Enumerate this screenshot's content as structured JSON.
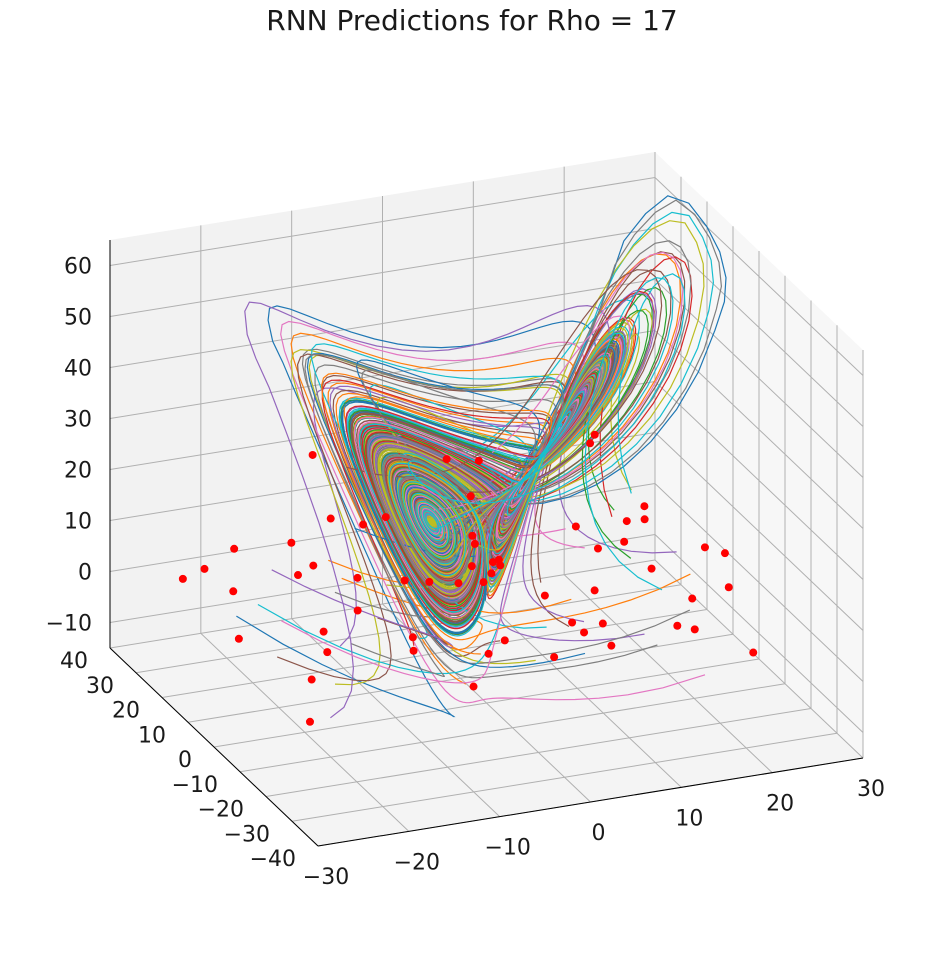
{
  "chart_data": {
    "type": "line",
    "projection": "3d",
    "title": "RNN Predictions for Rho = 17",
    "xlabel": "",
    "ylabel": "",
    "zlabel": "",
    "xlim": [
      -30,
      30
    ],
    "ylim": [
      -40,
      40
    ],
    "zlim": [
      -15,
      65
    ],
    "x_ticks": [
      "−30",
      "−20",
      "−10",
      "0",
      "10",
      "20",
      "30"
    ],
    "y_ticks": [
      "−40",
      "−30",
      "−20",
      "−10",
      "0",
      "10",
      "20",
      "30",
      "40"
    ],
    "z_ticks": [
      "−10",
      "0",
      "10",
      "20",
      "30",
      "40",
      "50",
      "60"
    ],
    "grid": true,
    "legend": "none",
    "series_colors": [
      "#1f77b4",
      "#ff7f0e",
      "#2ca02c",
      "#d62728",
      "#9467bd",
      "#8c564b",
      "#e377c2",
      "#7f7f7f",
      "#bcbd22",
      "#17becf"
    ],
    "marker_color": "#ff0000",
    "notes_visible": "Many trajectories (one per initial condition, red dots) converging onto a butterfly-shaped attractor"
  }
}
